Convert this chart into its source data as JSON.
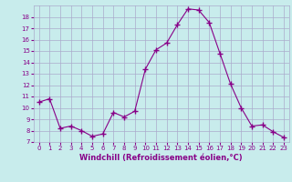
{
  "x": [
    0,
    1,
    2,
    3,
    4,
    5,
    6,
    7,
    8,
    9,
    10,
    11,
    12,
    13,
    14,
    15,
    16,
    17,
    18,
    19,
    20,
    21,
    22,
    23
  ],
  "y": [
    10.5,
    10.8,
    8.2,
    8.4,
    8.0,
    7.5,
    7.7,
    9.6,
    9.2,
    9.7,
    13.4,
    15.1,
    15.7,
    17.3,
    18.7,
    18.6,
    17.5,
    14.8,
    12.1,
    10.0,
    8.4,
    8.5,
    7.9,
    7.4
  ],
  "line_color": "#880088",
  "marker": "+",
  "marker_size": 4,
  "bg_color": "#c8ecec",
  "grid_color": "#aaaacc",
  "xlabel": "Windchill (Refroidissement éolien,°C)",
  "xlabel_color": "#880088",
  "tick_color": "#880088",
  "xlim_min": -0.5,
  "xlim_max": 23.5,
  "ylim_min": 7,
  "ylim_max": 19,
  "yticks": [
    7,
    8,
    9,
    10,
    11,
    12,
    13,
    14,
    15,
    16,
    17,
    18
  ],
  "xticks": [
    0,
    1,
    2,
    3,
    4,
    5,
    6,
    7,
    8,
    9,
    10,
    11,
    12,
    13,
    14,
    15,
    16,
    17,
    18,
    19,
    20,
    21,
    22,
    23
  ]
}
